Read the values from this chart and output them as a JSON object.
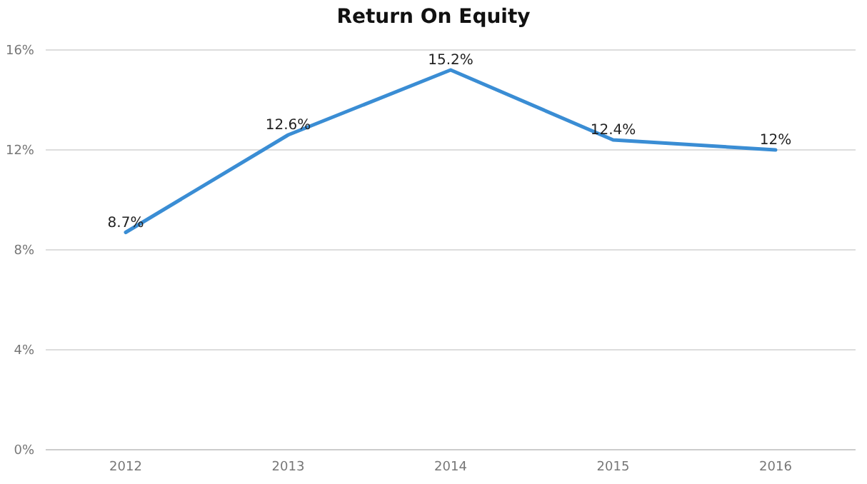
{
  "chart_data": {
    "type": "line",
    "title": "Return On Equity",
    "categories": [
      "2012",
      "2013",
      "2014",
      "2015",
      "2016"
    ],
    "series": [
      {
        "color": "#3a8dd4",
        "values": [
          8.7,
          12.6,
          15.2,
          12.4,
          12
        ],
        "value_labels": [
          "8.7%",
          "12.6%",
          "15.2%",
          "12.4%",
          "12%"
        ]
      }
    ],
    "ylim": [
      0,
      16
    ],
    "yticks": [
      {
        "value": 0,
        "label": "0%"
      },
      {
        "value": 4,
        "label": "4%"
      },
      {
        "value": 8,
        "label": "8%"
      },
      {
        "value": 12,
        "label": "12%"
      },
      {
        "value": 16,
        "label": "16%"
      }
    ],
    "grid": "y",
    "legend": false,
    "marker": "none",
    "line_style": "solid"
  }
}
